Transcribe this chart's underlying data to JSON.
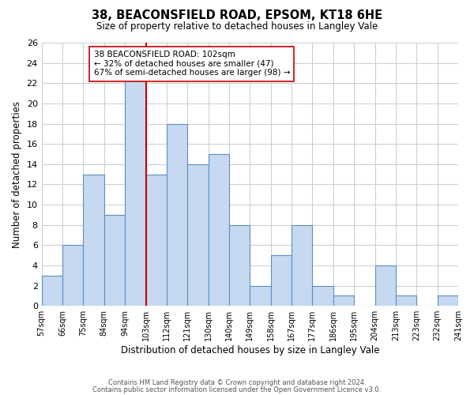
{
  "title": "38, BEACONSFIELD ROAD, EPSOM, KT18 6HE",
  "subtitle": "Size of property relative to detached houses in Langley Vale",
  "xlabel": "Distribution of detached houses by size in Langley Vale",
  "ylabel": "Number of detached properties",
  "bin_labels": [
    "57sqm",
    "66sqm",
    "75sqm",
    "84sqm",
    "94sqm",
    "103sqm",
    "112sqm",
    "121sqm",
    "130sqm",
    "140sqm",
    "149sqm",
    "158sqm",
    "167sqm",
    "177sqm",
    "186sqm",
    "195sqm",
    "204sqm",
    "213sqm",
    "223sqm",
    "232sqm",
    "241sqm"
  ],
  "bar_heights": [
    3,
    6,
    13,
    9,
    23,
    13,
    18,
    14,
    15,
    8,
    2,
    5,
    8,
    2,
    1,
    0,
    4,
    1,
    0,
    1
  ],
  "bar_color": "#c6d9f0",
  "bar_edge_color": "#5a8fc3",
  "highlight_bin_index": 4,
  "highlight_color": "#cc0000",
  "ylim": [
    0,
    26
  ],
  "yticks": [
    0,
    2,
    4,
    6,
    8,
    10,
    12,
    14,
    16,
    18,
    20,
    22,
    24,
    26
  ],
  "annotation_text": "38 BEACONSFIELD ROAD: 102sqm\n← 32% of detached houses are smaller (47)\n67% of semi-detached houses are larger (98) →",
  "annotation_box_color": "#ffffff",
  "annotation_box_edge": "#cc0000",
  "footer_line1": "Contains HM Land Registry data © Crown copyright and database right 2024.",
  "footer_line2": "Contains public sector information licensed under the Open Government Licence v3.0.",
  "background_color": "#ffffff",
  "grid_color": "#cccccc"
}
